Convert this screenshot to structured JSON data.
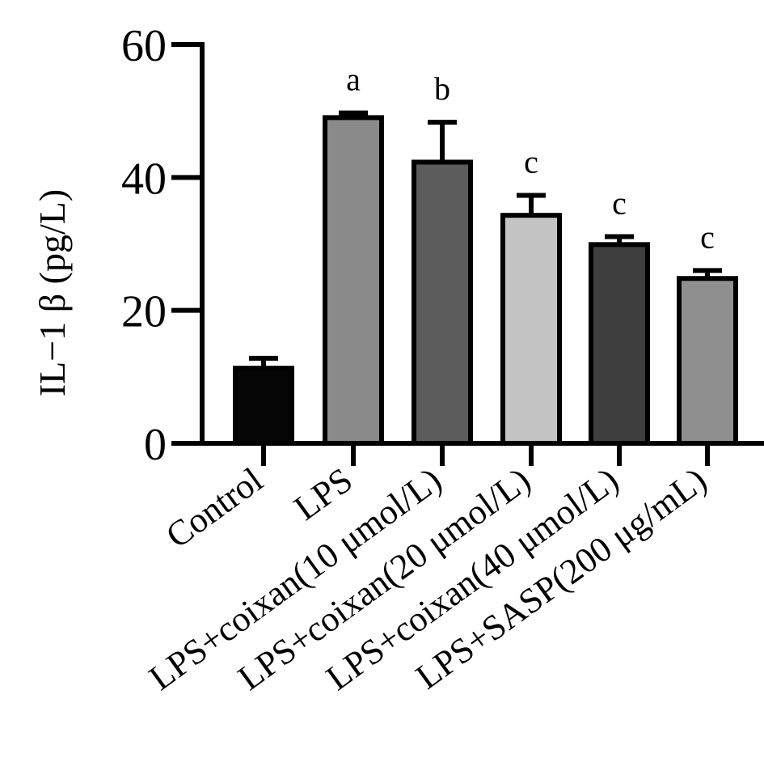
{
  "chart_data": {
    "type": "bar",
    "title": "",
    "xlabel": "",
    "ylabel": "IL−1 β (pg/L)",
    "ylim": [
      0,
      60
    ],
    "yticks": [
      "0",
      "20",
      "40",
      "60"
    ],
    "grid": false,
    "legend": "none",
    "categories": [
      "Control",
      "LPS",
      "LPS+coixan(10 μmol/L)",
      "LPS+coixan(20 μmol/L)",
      "LPS+coixan(40 μmol/L)",
      "LPS+SASP(200 μg/mL)"
    ],
    "values": [
      11.3,
      49.0,
      42.3,
      34.3,
      29.9,
      24.8
    ],
    "error": [
      1.5,
      0.7,
      6.0,
      3.0,
      1.2,
      1.2
    ],
    "significance_labels": [
      "",
      "a",
      "b",
      "c",
      "c",
      "c"
    ],
    "bar_colors": [
      "#050505",
      "#8a8a8a",
      "#5c5c5c",
      "#c4c4c4",
      "#3e3e3e",
      "#8f8f8f"
    ]
  }
}
